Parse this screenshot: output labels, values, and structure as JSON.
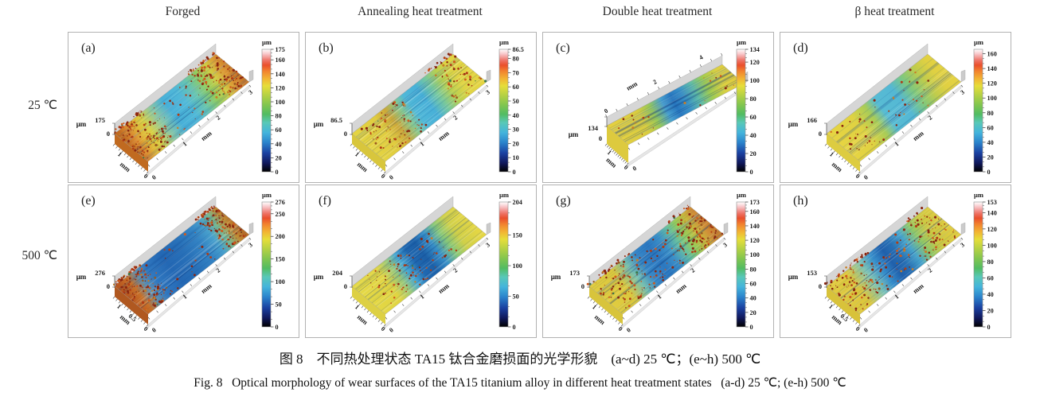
{
  "figure": {
    "column_headers": [
      "Forged",
      "Annealing heat treatment",
      "Double heat treatment",
      "β heat treatment"
    ],
    "row_labels": [
      "25 ℃",
      "500 ℃"
    ],
    "caption_zh": "图 8　不同热处理状态 TA15 钛合金磨损面的光学形貌　(a~d) 25 ℃；(e~h) 500 ℃",
    "caption_en": "Fig. 8   Optical morphology of wear surfaces of the TA15 titanium alloy in different heat treatment states   (a-d) 25 ℃; (e-h) 500 ℃"
  },
  "colors": {
    "panel_border": "#b2b2b2",
    "wall_gray": "#d6d6d6",
    "colormap_stops": [
      [
        0,
        "#000000"
      ],
      [
        0.07,
        "#10175a"
      ],
      [
        0.15,
        "#1a3fa0"
      ],
      [
        0.24,
        "#2b84cc"
      ],
      [
        0.32,
        "#44b4dc"
      ],
      [
        0.4,
        "#58c8b8"
      ],
      [
        0.47,
        "#52bc62"
      ],
      [
        0.55,
        "#84c64e"
      ],
      [
        0.63,
        "#b8d243"
      ],
      [
        0.7,
        "#e6de3a"
      ],
      [
        0.76,
        "#f2b433"
      ],
      [
        0.82,
        "#f2842e"
      ],
      [
        0.87,
        "#ea4f2c"
      ],
      [
        0.91,
        "#ee7468"
      ],
      [
        0.96,
        "#f8c3c6"
      ],
      [
        1,
        "#ffffff"
      ]
    ],
    "speckle_palette": [
      "#8a2610",
      "#b23c14",
      "#d05a1c",
      "#c87c24",
      "#9a5a20",
      "#3c7848"
    ]
  },
  "chart_data": [
    {
      "id": "a",
      "label": "(a)",
      "column": "Forged",
      "temperature": "25 ℃",
      "type": "surface3d",
      "z_unit": "μm",
      "z_max": "175",
      "z_min": "0",
      "colorbar_max": 175,
      "colorbar": {
        "unit": "μm",
        "ticks": [
          "175",
          "160",
          "140",
          "120",
          "100",
          "80",
          "60",
          "40",
          "20",
          "0"
        ]
      },
      "long_axis": {
        "label": "mm",
        "ticks": [
          "1",
          "2",
          "3"
        ],
        "position": "right"
      },
      "short_axis": {
        "label": "mm",
        "ticks": [
          "1",
          "0"
        ]
      },
      "variant": "standard",
      "end_color": "#c06a20",
      "profile_gradient": [
        [
          0,
          "#c06a20"
        ],
        [
          0.06,
          "#d88830"
        ],
        [
          0.13,
          "#e0b838"
        ],
        [
          0.2,
          "#d8d044"
        ],
        [
          0.3,
          "#90c8a0"
        ],
        [
          0.42,
          "#48b0d8"
        ],
        [
          0.55,
          "#50b8d8"
        ],
        [
          0.65,
          "#68c4b0"
        ],
        [
          0.75,
          "#90cc60"
        ],
        [
          0.85,
          "#d0cc44"
        ],
        [
          0.93,
          "#dc9834"
        ],
        [
          1,
          "#c87828"
        ]
      ],
      "speckle_zones": [
        [
          0,
          0.28,
          150,
          1
        ],
        [
          0.28,
          0.72,
          35,
          0
        ],
        [
          0.72,
          1,
          140,
          1
        ]
      ]
    },
    {
      "id": "b",
      "label": "(b)",
      "column": "Annealing heat treatment",
      "temperature": "25 ℃",
      "type": "surface3d",
      "z_unit": "μm",
      "z_max": "86.5",
      "z_min": "0",
      "colorbar_max": 86.5,
      "colorbar": {
        "unit": "μm",
        "ticks": [
          "86.5",
          "80",
          "70",
          "60",
          "50",
          "40",
          "30",
          "20",
          "10",
          "0"
        ]
      },
      "long_axis": {
        "label": "mm",
        "ticks": [
          "1",
          "2",
          "3"
        ],
        "position": "right"
      },
      "short_axis": {
        "label": "mm",
        "ticks": [
          "1",
          "0"
        ]
      },
      "variant": "standard",
      "end_color": "#d8c63c",
      "profile_gradient": [
        [
          0,
          "#e4d442"
        ],
        [
          0.18,
          "#e0cc40"
        ],
        [
          0.28,
          "#cca838"
        ],
        [
          0.38,
          "#88c890"
        ],
        [
          0.46,
          "#50b8d8"
        ],
        [
          0.58,
          "#48b0d8"
        ],
        [
          0.68,
          "#78c89c"
        ],
        [
          0.78,
          "#b8d050"
        ],
        [
          0.88,
          "#e0d444"
        ],
        [
          1,
          "#e4d442"
        ]
      ],
      "speckle_zones": [
        [
          0.05,
          0.45,
          85,
          0
        ],
        [
          0.72,
          1,
          70,
          1
        ]
      ]
    },
    {
      "id": "c",
      "label": "(c)",
      "column": "Double heat treatment",
      "temperature": "25 ℃",
      "type": "surface3d",
      "z_unit": "μm",
      "z_max": "134",
      "z_min": "0",
      "colorbar_max": 134,
      "colorbar": {
        "unit": "μm",
        "ticks": [
          "134",
          "120",
          "100",
          "80",
          "60",
          "40",
          "20",
          "0"
        ]
      },
      "long_axis": {
        "label": "mm",
        "ticks": [
          "2",
          "4"
        ],
        "position": "top"
      },
      "short_axis": {
        "label": "mm",
        "ticks": [
          "1",
          "0"
        ]
      },
      "variant": "wide",
      "end_color": "#ddca3e",
      "profile_gradient": [
        [
          0,
          "#e4d040"
        ],
        [
          0.22,
          "#d8cc40"
        ],
        [
          0.32,
          "#98c858"
        ],
        [
          0.42,
          "#48a0d0"
        ],
        [
          0.5,
          "#2878c0"
        ],
        [
          0.58,
          "#3890c8"
        ],
        [
          0.68,
          "#60bca8"
        ],
        [
          0.78,
          "#a0cc50"
        ],
        [
          0.9,
          "#dcd042"
        ],
        [
          1,
          "#e0cc3e"
        ]
      ],
      "speckle_zones": [
        [
          0.05,
          0.3,
          10,
          0
        ],
        [
          0.55,
          0.95,
          12,
          0
        ]
      ]
    },
    {
      "id": "d",
      "label": "(d)",
      "column": "β heat treatment",
      "temperature": "25 ℃",
      "type": "surface3d",
      "z_unit": "μm",
      "z_max": "166",
      "z_min": "0",
      "colorbar_max": 166,
      "colorbar": {
        "unit": "μm",
        "ticks": [
          "160",
          "140",
          "120",
          "100",
          "80",
          "60",
          "40",
          "20",
          "0"
        ]
      },
      "long_axis": {
        "label": "mm",
        "ticks": [
          "1",
          "2",
          "3"
        ],
        "position": "right"
      },
      "short_axis": {
        "label": "mm",
        "ticks": [
          "1",
          "0"
        ]
      },
      "variant": "standard",
      "end_color": "#ddcc40",
      "profile_gradient": [
        [
          0,
          "#e6d442"
        ],
        [
          0.2,
          "#e0d242"
        ],
        [
          0.33,
          "#a8cc58"
        ],
        [
          0.42,
          "#58bcd4"
        ],
        [
          0.58,
          "#54b8d4"
        ],
        [
          0.7,
          "#80c87c"
        ],
        [
          0.82,
          "#c0cc4c"
        ],
        [
          0.92,
          "#e0d042"
        ],
        [
          1,
          "#e4d242"
        ]
      ],
      "speckle_zones": [
        [
          0.02,
          0.35,
          30,
          0
        ],
        [
          0.4,
          0.85,
          28,
          0
        ]
      ]
    },
    {
      "id": "e",
      "label": "(e)",
      "column": "Forged",
      "temperature": "500 ℃",
      "type": "surface3d",
      "z_unit": "μm",
      "z_max": "276",
      "z_min": "0",
      "colorbar_max": 276,
      "colorbar": {
        "unit": "μm",
        "ticks": [
          "276",
          "250",
          "200",
          "150",
          "100",
          "50",
          "0"
        ]
      },
      "long_axis": {
        "label": "mm",
        "ticks": [
          "1",
          "2",
          "3"
        ],
        "position": "right"
      },
      "short_axis": {
        "label": "mm",
        "ticks": [
          "1",
          "0.5",
          "0"
        ]
      },
      "variant": "standard",
      "end_color": "#b05820",
      "profile_gradient": [
        [
          0,
          "#b85820"
        ],
        [
          0.08,
          "#c87028"
        ],
        [
          0.16,
          "#6090b0"
        ],
        [
          0.25,
          "#3078c0"
        ],
        [
          0.4,
          "#2468b4"
        ],
        [
          0.55,
          "#2870b8"
        ],
        [
          0.7,
          "#3484c4"
        ],
        [
          0.8,
          "#48a0cc"
        ],
        [
          0.88,
          "#78b890"
        ],
        [
          0.95,
          "#c09038"
        ],
        [
          1,
          "#b87028"
        ]
      ],
      "speckle_zones": [
        [
          0,
          0.26,
          170,
          1
        ],
        [
          0.26,
          0.82,
          20,
          0
        ],
        [
          0.82,
          1,
          140,
          1
        ]
      ]
    },
    {
      "id": "f",
      "label": "(f)",
      "column": "Annealing heat treatment",
      "temperature": "500 ℃",
      "type": "surface3d",
      "z_unit": "μm",
      "z_max": "204",
      "z_min": "0",
      "colorbar_max": 204,
      "colorbar": {
        "unit": "μm",
        "ticks": [
          "204",
          "150",
          "100",
          "50",
          "0"
        ]
      },
      "long_axis": {
        "label": "mm",
        "ticks": [
          "1",
          "2",
          "3"
        ],
        "position": "right"
      },
      "short_axis": {
        "label": "mm",
        "ticks": [
          "1",
          "0"
        ]
      },
      "variant": "standard",
      "end_color": "#ddd044",
      "profile_gradient": [
        [
          0,
          "#e4d844"
        ],
        [
          0.2,
          "#e0d442"
        ],
        [
          0.3,
          "#98c87c"
        ],
        [
          0.38,
          "#48a8d4"
        ],
        [
          0.47,
          "#2068b0"
        ],
        [
          0.56,
          "#1c60a8"
        ],
        [
          0.66,
          "#3890c8"
        ],
        [
          0.76,
          "#88c878"
        ],
        [
          0.86,
          "#d0d048"
        ],
        [
          1,
          "#e4d644"
        ]
      ],
      "speckle_zones": [
        [
          0.08,
          0.48,
          70,
          0
        ],
        [
          0.48,
          0.8,
          25,
          0
        ]
      ]
    },
    {
      "id": "g",
      "label": "(g)",
      "column": "Double heat treatment",
      "temperature": "500 ℃",
      "type": "surface3d",
      "z_unit": "μm",
      "z_max": "173",
      "z_min": "0",
      "colorbar_max": 173,
      "colorbar": {
        "unit": "μm",
        "ticks": [
          "173",
          "160",
          "140",
          "120",
          "100",
          "80",
          "60",
          "40",
          "20",
          "0"
        ]
      },
      "long_axis": {
        "label": "mm",
        "ticks": [
          "1",
          "2",
          "3"
        ],
        "position": "right"
      },
      "short_axis": {
        "label": "mm",
        "ticks": [
          "1",
          "0"
        ]
      },
      "variant": "standard",
      "end_color": "#d8c43c",
      "profile_gradient": [
        [
          0,
          "#e0cc40"
        ],
        [
          0.18,
          "#dcc83e"
        ],
        [
          0.3,
          "#78c0b0"
        ],
        [
          0.4,
          "#3888c8"
        ],
        [
          0.52,
          "#2c78c0"
        ],
        [
          0.62,
          "#3c90c8"
        ],
        [
          0.72,
          "#68c0a0"
        ],
        [
          0.8,
          "#98cc58"
        ],
        [
          0.88,
          "#c8b83c"
        ],
        [
          0.95,
          "#d09038"
        ],
        [
          1,
          "#c88030"
        ]
      ],
      "speckle_zones": [
        [
          0,
          0.45,
          120,
          1
        ],
        [
          0.45,
          0.78,
          45,
          0
        ],
        [
          0.78,
          1,
          100,
          1
        ]
      ]
    },
    {
      "id": "h",
      "label": "(h)",
      "column": "β heat treatment",
      "temperature": "500 ℃",
      "type": "surface3d",
      "z_unit": "μm",
      "z_max": "153",
      "z_min": "0",
      "colorbar_max": 153,
      "colorbar": {
        "unit": "μm",
        "ticks": [
          "153",
          "140",
          "120",
          "100",
          "80",
          "60",
          "40",
          "20",
          "0"
        ]
      },
      "long_axis": {
        "label": "mm",
        "ticks": [
          "1",
          "2",
          "3"
        ],
        "position": "right"
      },
      "short_axis": {
        "label": "mm",
        "ticks": [
          "1",
          "0.5",
          "0"
        ]
      },
      "variant": "standard",
      "end_color": "#d8c23a",
      "profile_gradient": [
        [
          0,
          "#e0ca3e"
        ],
        [
          0.15,
          "#dcc63c"
        ],
        [
          0.28,
          "#80c4b4"
        ],
        [
          0.38,
          "#3890cc"
        ],
        [
          0.48,
          "#2060ac"
        ],
        [
          0.56,
          "#2870b4"
        ],
        [
          0.66,
          "#48a4cc"
        ],
        [
          0.76,
          "#90c868"
        ],
        [
          0.86,
          "#ccc842"
        ],
        [
          1,
          "#e0cc40"
        ]
      ],
      "speckle_zones": [
        [
          0,
          0.42,
          120,
          1
        ],
        [
          0.42,
          0.72,
          35,
          0
        ],
        [
          0.72,
          1,
          70,
          1
        ]
      ]
    }
  ]
}
